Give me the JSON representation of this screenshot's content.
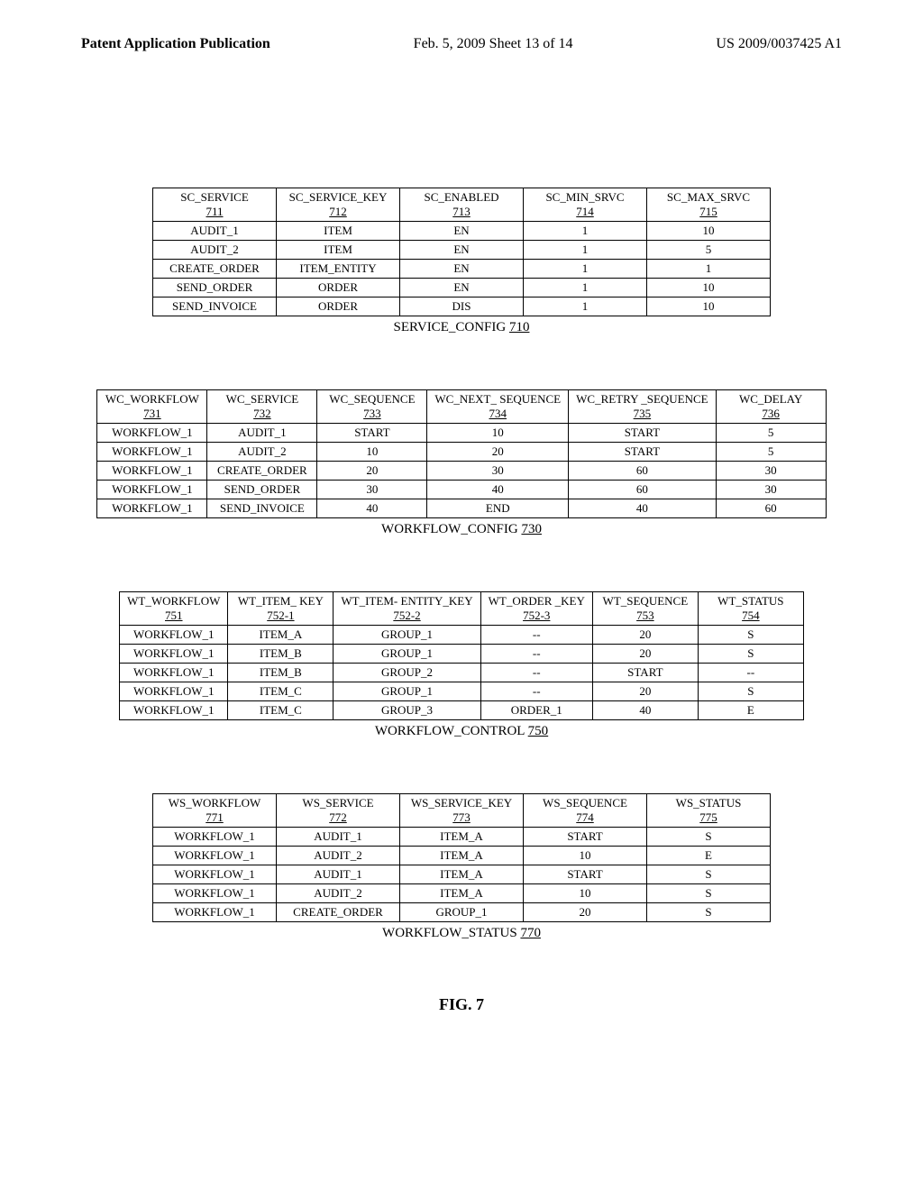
{
  "header": {
    "left": "Patent Application Publication",
    "center": "Feb. 5, 2009  Sheet 13 of 14",
    "right": "US 2009/0037425 A1"
  },
  "figure_label": "FIG. 7",
  "tables": {
    "service_config": {
      "caption_text": "SERVICE_CONFIG",
      "caption_ref": "710",
      "columns": [
        {
          "name": "SC_SERVICE",
          "ref": "711"
        },
        {
          "name": "SC_SERVICE_KEY",
          "ref": "712"
        },
        {
          "name": "SC_ENABLED",
          "ref": "713"
        },
        {
          "name": "SC_MIN_SRVC",
          "ref": "714"
        },
        {
          "name": "SC_MAX_SRVC",
          "ref": "715"
        }
      ],
      "rows": [
        [
          "AUDIT_1",
          "ITEM",
          "EN",
          "1",
          "10"
        ],
        [
          "AUDIT_2",
          "ITEM",
          "EN",
          "1",
          "5"
        ],
        [
          "CREATE_ORDER",
          "ITEM_ENTITY",
          "EN",
          "1",
          "1"
        ],
        [
          "SEND_ORDER",
          "ORDER",
          "EN",
          "1",
          "10"
        ],
        [
          "SEND_INVOICE",
          "ORDER",
          "DIS",
          "1",
          "10"
        ]
      ]
    },
    "workflow_config": {
      "caption_text": "WORKFLOW_CONFIG",
      "caption_ref": "730",
      "columns": [
        {
          "name": "WC_WORKFLOW",
          "ref": "731"
        },
        {
          "name": "WC_SERVICE",
          "ref": "732"
        },
        {
          "name": "WC_SEQUENCE",
          "ref": "733"
        },
        {
          "name": "WC_NEXT_ SEQUENCE",
          "ref": "734"
        },
        {
          "name": "WC_RETRY _SEQUENCE",
          "ref": "735"
        },
        {
          "name": "WC_DELAY",
          "ref": "736"
        }
      ],
      "rows": [
        [
          "WORKFLOW_1",
          "AUDIT_1",
          "START",
          "10",
          "START",
          "5"
        ],
        [
          "WORKFLOW_1",
          "AUDIT_2",
          "10",
          "20",
          "START",
          "5"
        ],
        [
          "WORKFLOW_1",
          "CREATE_ORDER",
          "20",
          "30",
          "60",
          "30"
        ],
        [
          "WORKFLOW_1",
          "SEND_ORDER",
          "30",
          "40",
          "60",
          "30"
        ],
        [
          "WORKFLOW_1",
          "SEND_INVOICE",
          "40",
          "END",
          "40",
          "60"
        ]
      ]
    },
    "workflow_control": {
      "caption_text": "WORKFLOW_CONTROL",
      "caption_ref": "750",
      "columns": [
        {
          "name": "WT_WORKFLOW",
          "ref": "751"
        },
        {
          "name": "WT_ITEM_ KEY",
          "ref": "752-1"
        },
        {
          "name": "WT_ITEM- ENTITY_KEY",
          "ref": "752-2"
        },
        {
          "name": "WT_ORDER _KEY",
          "ref": "752-3"
        },
        {
          "name": "WT_SEQUENCE",
          "ref": "753"
        },
        {
          "name": "WT_STATUS",
          "ref": "754"
        }
      ],
      "rows": [
        [
          "WORKFLOW_1",
          "ITEM_A",
          "GROUP_1",
          "--",
          "20",
          "S"
        ],
        [
          "WORKFLOW_1",
          "ITEM_B",
          "GROUP_1",
          "--",
          "20",
          "S"
        ],
        [
          "WORKFLOW_1",
          "ITEM_B",
          "GROUP_2",
          "--",
          "START",
          "--"
        ],
        [
          "WORKFLOW_1",
          "ITEM_C",
          "GROUP_1",
          "--",
          "20",
          "S"
        ],
        [
          "WORKFLOW_1",
          "ITEM_C",
          "GROUP_3",
          "ORDER_1",
          "40",
          "E"
        ]
      ]
    },
    "workflow_status": {
      "caption_text": "WORKFLOW_STATUS",
      "caption_ref": "770",
      "columns": [
        {
          "name": "WS_WORKFLOW",
          "ref": "771"
        },
        {
          "name": "WS_SERVICE",
          "ref": "772"
        },
        {
          "name": "WS_SERVICE_KEY",
          "ref": "773"
        },
        {
          "name": "WS_SEQUENCE",
          "ref": "774"
        },
        {
          "name": "WS_STATUS",
          "ref": "775"
        }
      ],
      "rows": [
        [
          "WORKFLOW_1",
          "AUDIT_1",
          "ITEM_A",
          "START",
          "S"
        ],
        [
          "WORKFLOW_1",
          "AUDIT_2",
          "ITEM_A",
          "10",
          "E"
        ],
        [
          "WORKFLOW_1",
          "AUDIT_1",
          "ITEM_A",
          "START",
          "S"
        ],
        [
          "WORKFLOW_1",
          "AUDIT_2",
          "ITEM_A",
          "10",
          "S"
        ],
        [
          "WORKFLOW_1",
          "CREATE_ORDER",
          "GROUP_1",
          "20",
          "S"
        ]
      ]
    }
  }
}
